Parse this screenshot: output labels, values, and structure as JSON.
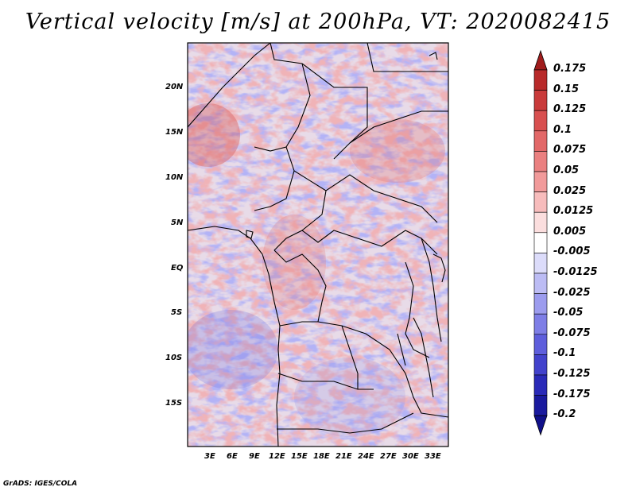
{
  "title": "Vertical velocity [m/s] at 200hPa, VT: 2020082415",
  "map": {
    "lat_labels": [
      "20N",
      "15N",
      "10N",
      "5N",
      "EQ",
      "5S",
      "10S",
      "15S"
    ],
    "lon_labels": [
      "3E",
      "6E",
      "9E",
      "12E",
      "15E",
      "18E",
      "21E",
      "24E",
      "27E",
      "30E",
      "33E"
    ]
  },
  "colorbar": {
    "labels": [
      "0.175",
      "0.15",
      "0.125",
      "0.1",
      "0.075",
      "0.05",
      "0.025",
      "0.0125",
      "0.005",
      "-0.005",
      "-0.0125",
      "-0.025",
      "-0.05",
      "-0.075",
      "-0.1",
      "-0.125",
      "-0.175",
      "-0.2"
    ],
    "colors": [
      "#a01c1c",
      "#b82a2a",
      "#c93b3b",
      "#d85050",
      "#e26868",
      "#ea8080",
      "#f19a9a",
      "#f7bcbc",
      "#fbdede",
      "#ffffff",
      "#dcdcfa",
      "#bcbcf4",
      "#9c9cee",
      "#7e7ee6",
      "#5e5edc",
      "#4242cc",
      "#2a2ab8",
      "#1a1a9e",
      "#10108a"
    ]
  },
  "credit": "GrADS: IGES/COLA"
}
